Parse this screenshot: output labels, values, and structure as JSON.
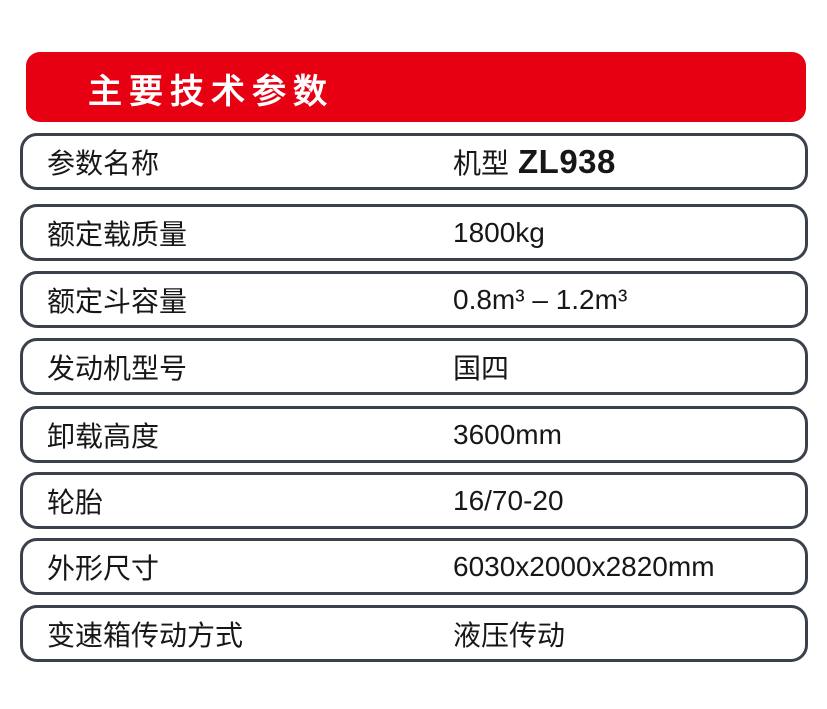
{
  "colors": {
    "accent_red": "#e60012",
    "row_border": "#3a414d",
    "header_text": "#ffffff",
    "body_text": "#171717",
    "background": "#ffffff"
  },
  "header": {
    "title": "主要技术参数"
  },
  "table": {
    "rows": [
      {
        "label": "参数名称",
        "value_prefix": "机型",
        "value_model": "ZL938"
      },
      {
        "label": "额定载质量",
        "value": "1800kg"
      },
      {
        "label": "额定斗容量",
        "value": "0.8m³ – 1.2m³"
      },
      {
        "label": "发动机型号",
        "value": "国四"
      },
      {
        "label": "卸载高度",
        "value": "3600mm"
      },
      {
        "label": "轮胎",
        "value": "16/70-20"
      },
      {
        "label": "外形尺寸",
        "value": "6030x2000x2820mm"
      },
      {
        "label": "变速箱传动方式",
        "value": "液压传动"
      }
    ]
  }
}
